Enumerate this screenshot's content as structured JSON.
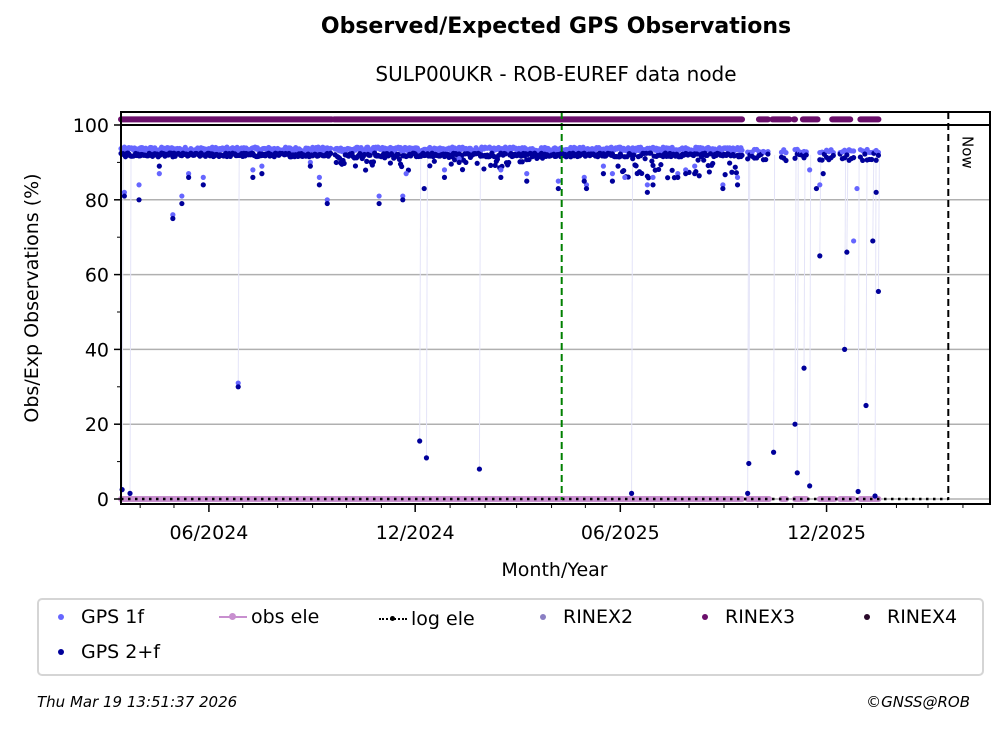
{
  "header": {
    "title": "Observed/Expected GPS Observations",
    "subtitle": "SULP00UKR - ROB-EUREF data node"
  },
  "footer": {
    "timestamp": "Thu Mar 19 13:51:37 2026",
    "copyright": "©GNSS@ROB"
  },
  "colors": {
    "gps1f": "#6666ff",
    "gps2f": "#00009a",
    "obs_ele": "#c88fcf",
    "log_ele": "#000000",
    "rinex2": "#8a7fc3",
    "rinex3": "#6b0f6b",
    "rinex4": "#2a0a2a",
    "green_marker": "#008000",
    "now_line": "#000000",
    "grid": "#b0b0b0"
  },
  "legend": {
    "items": [
      {
        "key": "gps1f",
        "label": "GPS 1f",
        "marker": "dot"
      },
      {
        "key": "obs_ele",
        "label": "obs ele",
        "marker": "line-dot"
      },
      {
        "key": "log_ele",
        "label": "log ele",
        "marker": "dotted-line-dot"
      },
      {
        "key": "rinex2",
        "label": "RINEX2",
        "marker": "dot"
      },
      {
        "key": "rinex3",
        "label": "RINEX3",
        "marker": "dot"
      },
      {
        "key": "rinex4",
        "label": "RINEX4",
        "marker": "dot"
      },
      {
        "key": "gps2f",
        "label": "GPS 2+f",
        "marker": "dot"
      }
    ]
  },
  "chart_data": {
    "type": "scatter",
    "title": "Observed/Expected GPS Observations",
    "subtitle": "SULP00UKR - ROB-EUREF data node",
    "xlabel": "Month/Year",
    "ylabel": "Obs/Exp Observations (%)",
    "x_unit": "days since 2024-03-15",
    "xlim_dates": [
      "2024-03-15",
      "2026-04-25"
    ],
    "xlim": [
      0,
      771
    ],
    "ylim": [
      -0.5,
      103.5
    ],
    "y_ticks": [
      0,
      20,
      40,
      60,
      80,
      100
    ],
    "y_minor_ticks": [
      10,
      30,
      50,
      70,
      90
    ],
    "x_ticks": [
      {
        "day": 78,
        "label": "06/2024"
      },
      {
        "day": 261,
        "label": "12/2024"
      },
      {
        "day": 443,
        "label": "06/2025"
      },
      {
        "day": 626,
        "label": "12/2025"
      }
    ],
    "x_minor_ticks_days": [
      -14,
      17,
      47,
      108,
      139,
      170,
      200,
      231,
      292,
      323,
      351,
      382,
      412,
      473,
      504,
      535,
      565,
      596,
      657,
      688,
      716,
      747
    ],
    "grid": "horizontal",
    "legend_position": "bottom",
    "annotations": [
      {
        "type": "vline",
        "day": 391,
        "style": "dashed",
        "color": "green",
        "label": ""
      },
      {
        "type": "vline",
        "day": 734,
        "style": "dashed",
        "color": "black",
        "label": "Now"
      }
    ],
    "rinex3_y": 101.5,
    "rinex3_segments": [
      [
        0,
        187
      ],
      [
        189,
        551
      ],
      [
        566,
        574
      ],
      [
        578,
        593
      ],
      [
        597,
        598
      ],
      [
        605,
        618
      ],
      [
        631,
        647
      ],
      [
        656,
        672
      ]
    ],
    "obs_ele_y": 0,
    "obs_ele_range": [
      0,
      551
    ],
    "obs_ele_segments_late": [
      [
        556,
        575
      ],
      [
        586,
        590
      ],
      [
        598,
        608
      ],
      [
        620,
        633
      ],
      [
        638,
        650
      ],
      [
        656,
        672
      ]
    ],
    "log_ele_y": 0,
    "log_ele_range": [
      0,
      734
    ],
    "gps_baseline": {
      "day_range": [
        0,
        551
      ],
      "gps1f": 93.5,
      "gps2f": 92.0
    },
    "gps_late_clusters": [
      [
        556,
        575
      ],
      [
        586,
        590
      ],
      [
        598,
        608
      ],
      [
        620,
        633
      ],
      [
        638,
        650
      ],
      [
        656,
        672
      ]
    ],
    "gps1f_outliers": [
      {
        "d": 3,
        "y": 82
      },
      {
        "d": 16,
        "y": 84
      },
      {
        "d": 34,
        "y": 87
      },
      {
        "d": 46,
        "y": 76
      },
      {
        "d": 54,
        "y": 81
      },
      {
        "d": 60,
        "y": 87
      },
      {
        "d": 73,
        "y": 86
      },
      {
        "d": 104,
        "y": 31
      },
      {
        "d": 117,
        "y": 88
      },
      {
        "d": 125,
        "y": 89
      },
      {
        "d": 168,
        "y": 90
      },
      {
        "d": 176,
        "y": 86
      },
      {
        "d": 183,
        "y": 80
      },
      {
        "d": 229,
        "y": 81
      },
      {
        "d": 250,
        "y": 81
      },
      {
        "d": 253,
        "y": 87
      },
      {
        "d": 287,
        "y": 88
      },
      {
        "d": 300,
        "y": 91
      },
      {
        "d": 337,
        "y": 88
      },
      {
        "d": 360,
        "y": 87
      },
      {
        "d": 388,
        "y": 85
      },
      {
        "d": 411,
        "y": 86
      },
      {
        "d": 413,
        "y": 84
      },
      {
        "d": 428,
        "y": 89
      },
      {
        "d": 436,
        "y": 87
      },
      {
        "d": 447,
        "y": 86
      },
      {
        "d": 467,
        "y": 84
      },
      {
        "d": 472,
        "y": 86
      },
      {
        "d": 494,
        "y": 87
      },
      {
        "d": 501,
        "y": 88
      },
      {
        "d": 509,
        "y": 89
      },
      {
        "d": 534,
        "y": 84
      },
      {
        "d": 547,
        "y": 86
      },
      {
        "d": 611,
        "y": 88
      },
      {
        "d": 620,
        "y": 84
      },
      {
        "d": 650,
        "y": 69
      },
      {
        "d": 653,
        "y": 83
      }
    ],
    "gps2f_outliers": [
      {
        "d": 1,
        "y": 2.5
      },
      {
        "d": 3,
        "y": 81
      },
      {
        "d": 8,
        "y": 1.5
      },
      {
        "d": 16,
        "y": 80
      },
      {
        "d": 34,
        "y": 89
      },
      {
        "d": 46,
        "y": 75
      },
      {
        "d": 54,
        "y": 79
      },
      {
        "d": 60,
        "y": 86
      },
      {
        "d": 73,
        "y": 84
      },
      {
        "d": 104,
        "y": 30
      },
      {
        "d": 117,
        "y": 86
      },
      {
        "d": 125,
        "y": 87
      },
      {
        "d": 168,
        "y": 89
      },
      {
        "d": 176,
        "y": 84
      },
      {
        "d": 183,
        "y": 79
      },
      {
        "d": 229,
        "y": 79
      },
      {
        "d": 250,
        "y": 80
      },
      {
        "d": 265,
        "y": 15.5
      },
      {
        "d": 269,
        "y": 83
      },
      {
        "d": 271,
        "y": 11
      },
      {
        "d": 287,
        "y": 86
      },
      {
        "d": 300,
        "y": 90
      },
      {
        "d": 318,
        "y": 8
      },
      {
        "d": 337,
        "y": 86
      },
      {
        "d": 360,
        "y": 85
      },
      {
        "d": 388,
        "y": 83
      },
      {
        "d": 411,
        "y": 85
      },
      {
        "d": 413,
        "y": 83
      },
      {
        "d": 428,
        "y": 87
      },
      {
        "d": 436,
        "y": 85
      },
      {
        "d": 453,
        "y": 1.5
      },
      {
        "d": 467,
        "y": 82
      },
      {
        "d": 472,
        "y": 84
      },
      {
        "d": 494,
        "y": 86
      },
      {
        "d": 501,
        "y": 87
      },
      {
        "d": 509,
        "y": 87
      },
      {
        "d": 534,
        "y": 83
      },
      {
        "d": 547,
        "y": 84
      },
      {
        "d": 556,
        "y": 1.5
      },
      {
        "d": 557,
        "y": 9.5
      },
      {
        "d": 579,
        "y": 12.5
      },
      {
        "d": 598,
        "y": 20
      },
      {
        "d": 600,
        "y": 7
      },
      {
        "d": 606,
        "y": 35
      },
      {
        "d": 611,
        "y": 3.5
      },
      {
        "d": 620,
        "y": 65
      },
      {
        "d": 617,
        "y": 83
      },
      {
        "d": 623,
        "y": 87
      },
      {
        "d": 642,
        "y": 40
      },
      {
        "d": 644,
        "y": 66
      },
      {
        "d": 654,
        "y": 2
      },
      {
        "d": 661,
        "y": 25
      },
      {
        "d": 667,
        "y": 69
      },
      {
        "d": 669,
        "y": 0.8
      },
      {
        "d": 670,
        "y": 82
      },
      {
        "d": 672,
        "y": 55.5
      }
    ],
    "series": [
      {
        "name": "GPS 1f",
        "color": "#6666ff"
      },
      {
        "name": "GPS 2+f",
        "color": "#00009a"
      },
      {
        "name": "obs ele",
        "color": "#c88fcf"
      },
      {
        "name": "log ele",
        "color": "#000000"
      },
      {
        "name": "RINEX2",
        "color": "#8a7fc3"
      },
      {
        "name": "RINEX3",
        "color": "#6b0f6b"
      },
      {
        "name": "RINEX4",
        "color": "#2a0a2a"
      }
    ]
  }
}
